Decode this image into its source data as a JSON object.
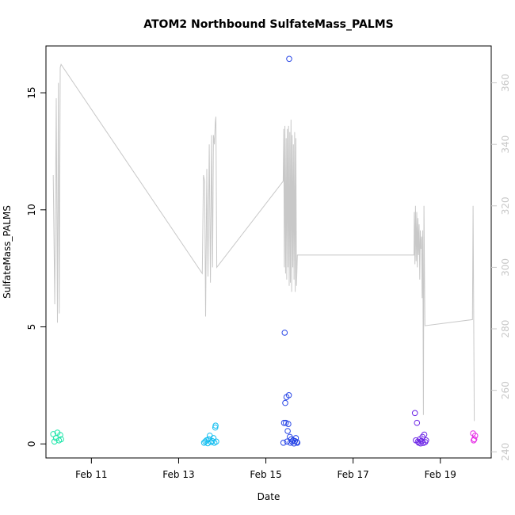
{
  "chart_data": {
    "type": "scatter",
    "title": "ATOM2 Northbound SulfateMass_PALMS",
    "xlabel": "Date",
    "ylabel": "SulfateMass_PALMS",
    "x_ticks": [
      "Feb 11",
      "Feb 13",
      "Feb 15",
      "Feb 17",
      "Feb 19"
    ],
    "xlim": [
      "2017-02-09 23:00",
      "2017-02-20 04:00"
    ],
    "ylim": [
      -0.6,
      17.0
    ],
    "y_ticks": [
      0,
      5,
      10,
      15
    ],
    "y2_ticks": [
      240,
      260,
      280,
      300,
      320,
      340,
      360
    ],
    "y2lim": [
      238,
      372
    ],
    "grid": false,
    "colors": {
      "line": "#c8c8c8",
      "right_axis": "#c8c8c8",
      "points": [
        "#1ee6aa",
        "#14bef0",
        "#2846e6",
        "#6e28e6",
        "#e628e6"
      ]
    },
    "series": [
      {
        "color": "#1ee6aa",
        "points": [
          [
            "2017-02-10 03:00",
            0.42
          ],
          [
            "2017-02-10 03:40",
            0.1
          ],
          [
            "2017-02-10 04:30",
            0.25
          ],
          [
            "2017-02-10 05:20",
            0.48
          ],
          [
            "2017-02-10 06:10",
            0.15
          ],
          [
            "2017-02-10 06:50",
            0.38
          ],
          [
            "2017-02-10 07:20",
            0.2
          ]
        ]
      },
      {
        "color": "#14bef0",
        "points": [
          [
            "2017-02-13 14:00",
            0.05
          ],
          [
            "2017-02-13 14:40",
            0.1
          ],
          [
            "2017-02-13 15:20",
            0.15
          ],
          [
            "2017-02-13 16:00",
            0.03
          ],
          [
            "2017-02-13 16:30",
            0.2
          ],
          [
            "2017-02-13 17:10",
            0.35
          ],
          [
            "2017-02-13 17:50",
            0.08
          ],
          [
            "2017-02-13 18:30",
            0.12
          ],
          [
            "2017-02-13 19:10",
            0.25
          ],
          [
            "2017-02-13 19:40",
            0.05
          ],
          [
            "2017-02-13 20:10",
            0.7
          ],
          [
            "2017-02-13 20:20",
            0.78
          ],
          [
            "2017-02-13 20:40",
            0.1
          ]
        ]
      },
      {
        "color": "#2846e6",
        "points": [
          [
            "2017-02-15 09:40",
            0.05
          ],
          [
            "2017-02-15 10:00",
            0.9
          ],
          [
            "2017-02-15 10:20",
            4.75
          ],
          [
            "2017-02-15 10:40",
            1.75
          ],
          [
            "2017-02-15 11:00",
            0.9
          ],
          [
            "2017-02-15 11:20",
            2.0
          ],
          [
            "2017-02-15 11:40",
            0.1
          ],
          [
            "2017-02-15 12:00",
            0.55
          ],
          [
            "2017-02-15 12:20",
            0.85
          ],
          [
            "2017-02-15 12:40",
            2.08
          ],
          [
            "2017-02-15 12:50",
            16.45
          ],
          [
            "2017-02-15 13:10",
            0.3
          ],
          [
            "2017-02-15 13:30",
            0.05
          ],
          [
            "2017-02-15 14:00",
            0.2
          ],
          [
            "2017-02-15 14:30",
            0.1
          ],
          [
            "2017-02-15 15:00",
            0.15
          ],
          [
            "2017-02-15 15:30",
            0.02
          ],
          [
            "2017-02-15 16:00",
            0.12
          ],
          [
            "2017-02-15 16:30",
            0.25
          ],
          [
            "2017-02-15 17:00",
            0.08
          ],
          [
            "2017-02-15 17:20",
            0.05
          ]
        ]
      },
      {
        "color": "#6e28e6",
        "points": [
          [
            "2017-02-18 10:00",
            1.32
          ],
          [
            "2017-02-18 10:30",
            0.15
          ],
          [
            "2017-02-18 11:10",
            0.9
          ],
          [
            "2017-02-18 11:40",
            0.1
          ],
          [
            "2017-02-18 12:10",
            0.05
          ],
          [
            "2017-02-18 12:40",
            0.2
          ],
          [
            "2017-02-18 13:10",
            0.02
          ],
          [
            "2017-02-18 13:40",
            0.12
          ],
          [
            "2017-02-18 14:10",
            0.3
          ],
          [
            "2017-02-18 14:40",
            0.04
          ],
          [
            "2017-02-18 15:10",
            0.4
          ],
          [
            "2017-02-18 15:40",
            0.08
          ],
          [
            "2017-02-18 16:10",
            0.15
          ]
        ]
      },
      {
        "color": "#e628e6",
        "points": [
          [
            "2017-02-19 18:00",
            0.45
          ],
          [
            "2017-02-19 18:20",
            0.15
          ],
          [
            "2017-02-19 18:40",
            0.2
          ],
          [
            "2017-02-19 19:10",
            0.35
          ]
        ]
      }
    ],
    "secondary_line": {
      "axis": "right",
      "points": [
        [
          "2017-02-10 03:00",
          330
        ],
        [
          "2017-02-10 03:50",
          288
        ],
        [
          "2017-02-10 04:40",
          355
        ],
        [
          "2017-02-10 05:20",
          282
        ],
        [
          "2017-02-10 05:50",
          360
        ],
        [
          "2017-02-10 06:20",
          285
        ],
        [
          "2017-02-10 06:50",
          365
        ],
        [
          "2017-02-10 07:20",
          366
        ],
        [
          "2017-02-13 13:00",
          298
        ],
        [
          "2017-02-13 13:40",
          330
        ],
        [
          "2017-02-13 14:20",
          328
        ],
        [
          "2017-02-13 14:50",
          284
        ],
        [
          "2017-02-13 15:30",
          332
        ],
        [
          "2017-02-13 16:10",
          297
        ],
        [
          "2017-02-13 16:50",
          340
        ],
        [
          "2017-02-13 17:30",
          295
        ],
        [
          "2017-02-13 18:10",
          343
        ],
        [
          "2017-02-13 18:40",
          300
        ],
        [
          "2017-02-13 19:10",
          343
        ],
        [
          "2017-02-13 19:40",
          340
        ],
        [
          "2017-02-13 20:10",
          347
        ],
        [
          "2017-02-13 20:30",
          349
        ],
        [
          "2017-02-13 21:00",
          300
        ],
        [
          "2017-02-15 09:30",
          328
        ],
        [
          "2017-02-15 09:50",
          345
        ],
        [
          "2017-02-15 10:10",
          300
        ],
        [
          "2017-02-15 10:30",
          346
        ],
        [
          "2017-02-15 10:50",
          298
        ],
        [
          "2017-02-15 11:10",
          342
        ],
        [
          "2017-02-15 11:30",
          296
        ],
        [
          "2017-02-15 11:50",
          345
        ],
        [
          "2017-02-15 12:10",
          300
        ],
        [
          "2017-02-15 12:30",
          346
        ],
        [
          "2017-02-15 12:50",
          294
        ],
        [
          "2017-02-15 13:10",
          344
        ],
        [
          "2017-02-15 13:30",
          295
        ],
        [
          "2017-02-15 13:50",
          348
        ],
        [
          "2017-02-15 14:10",
          292
        ],
        [
          "2017-02-15 14:30",
          343
        ],
        [
          "2017-02-15 14:50",
          300
        ],
        [
          "2017-02-15 15:10",
          340
        ],
        [
          "2017-02-15 15:30",
          296
        ],
        [
          "2017-02-15 15:50",
          344
        ],
        [
          "2017-02-15 16:10",
          292
        ],
        [
          "2017-02-15 16:30",
          342
        ],
        [
          "2017-02-15 16:50",
          294
        ],
        [
          "2017-02-15 17:20",
          304
        ],
        [
          "2017-02-18 09:30",
          304
        ],
        [
          "2017-02-18 09:40",
          318
        ],
        [
          "2017-02-18 10:00",
          301
        ],
        [
          "2017-02-18 10:20",
          320
        ],
        [
          "2017-02-18 10:40",
          302
        ],
        [
          "2017-02-18 11:00",
          318
        ],
        [
          "2017-02-18 11:20",
          300
        ],
        [
          "2017-02-18 11:40",
          316
        ],
        [
          "2017-02-18 12:00",
          304
        ],
        [
          "2017-02-18 12:20",
          314
        ],
        [
          "2017-02-18 12:40",
          296
        ],
        [
          "2017-02-18 13:00",
          312
        ],
        [
          "2017-02-18 13:20",
          306
        ],
        [
          "2017-02-18 13:40",
          310
        ],
        [
          "2017-02-18 14:00",
          290
        ],
        [
          "2017-02-18 14:20",
          312
        ],
        [
          "2017-02-18 14:40",
          252
        ],
        [
          "2017-02-18 15:00",
          320
        ],
        [
          "2017-02-18 15:30",
          281
        ],
        [
          "2017-02-19 17:40",
          283
        ],
        [
          "2017-02-19 18:00",
          320
        ],
        [
          "2017-02-19 18:40",
          250
        ]
      ]
    }
  }
}
